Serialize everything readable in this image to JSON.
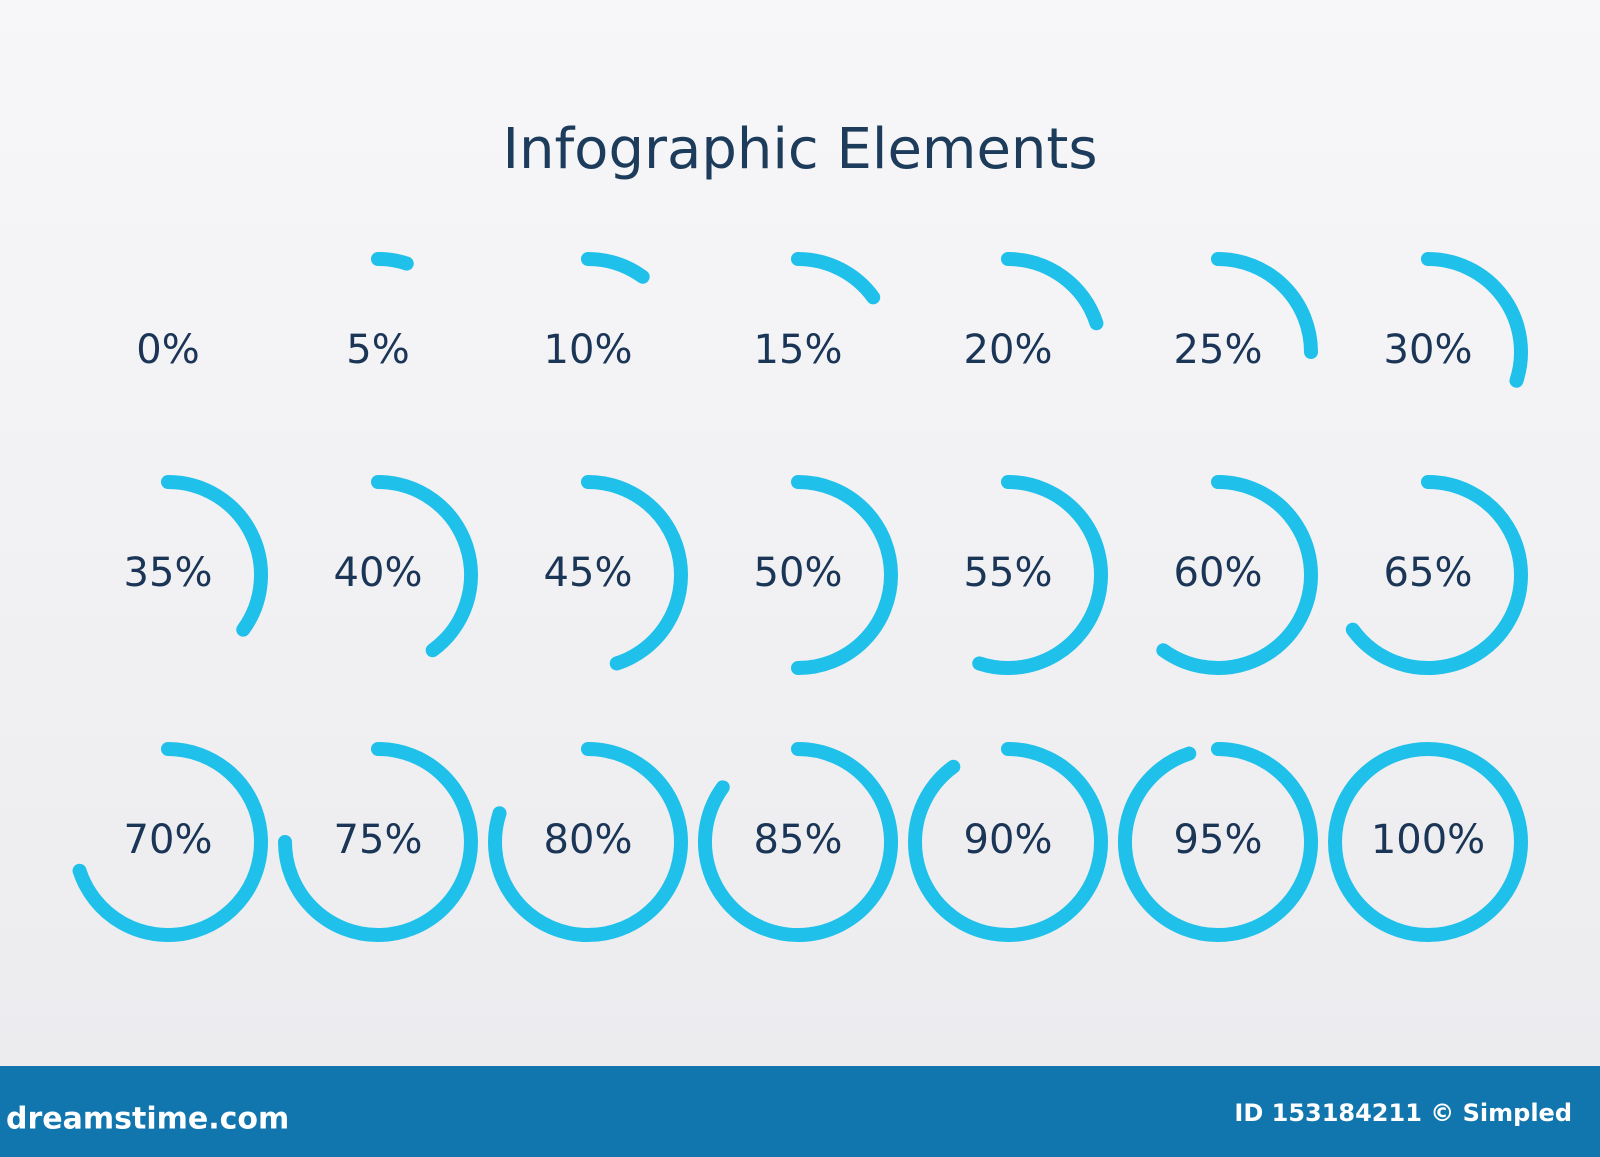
{
  "chart_data": {
    "type": "ring",
    "title": "Infographic Elements",
    "values": [
      0,
      5,
      10,
      15,
      20,
      25,
      30,
      35,
      40,
      45,
      50,
      55,
      60,
      65,
      70,
      75,
      80,
      85,
      90,
      95,
      100
    ],
    "value_labels": [
      "0%",
      "5%",
      "10%",
      "15%",
      "20%",
      "25%",
      "30%",
      "35%",
      "40%",
      "45%",
      "50%",
      "55%",
      "60%",
      "65%",
      "70%",
      "75%",
      "80%",
      "85%",
      "90%",
      "95%",
      "100%"
    ],
    "color": "#1fc0ea"
  },
  "footer": {
    "site": "dreamstime.com",
    "credit": "ID 153184211 © Simpled"
  }
}
